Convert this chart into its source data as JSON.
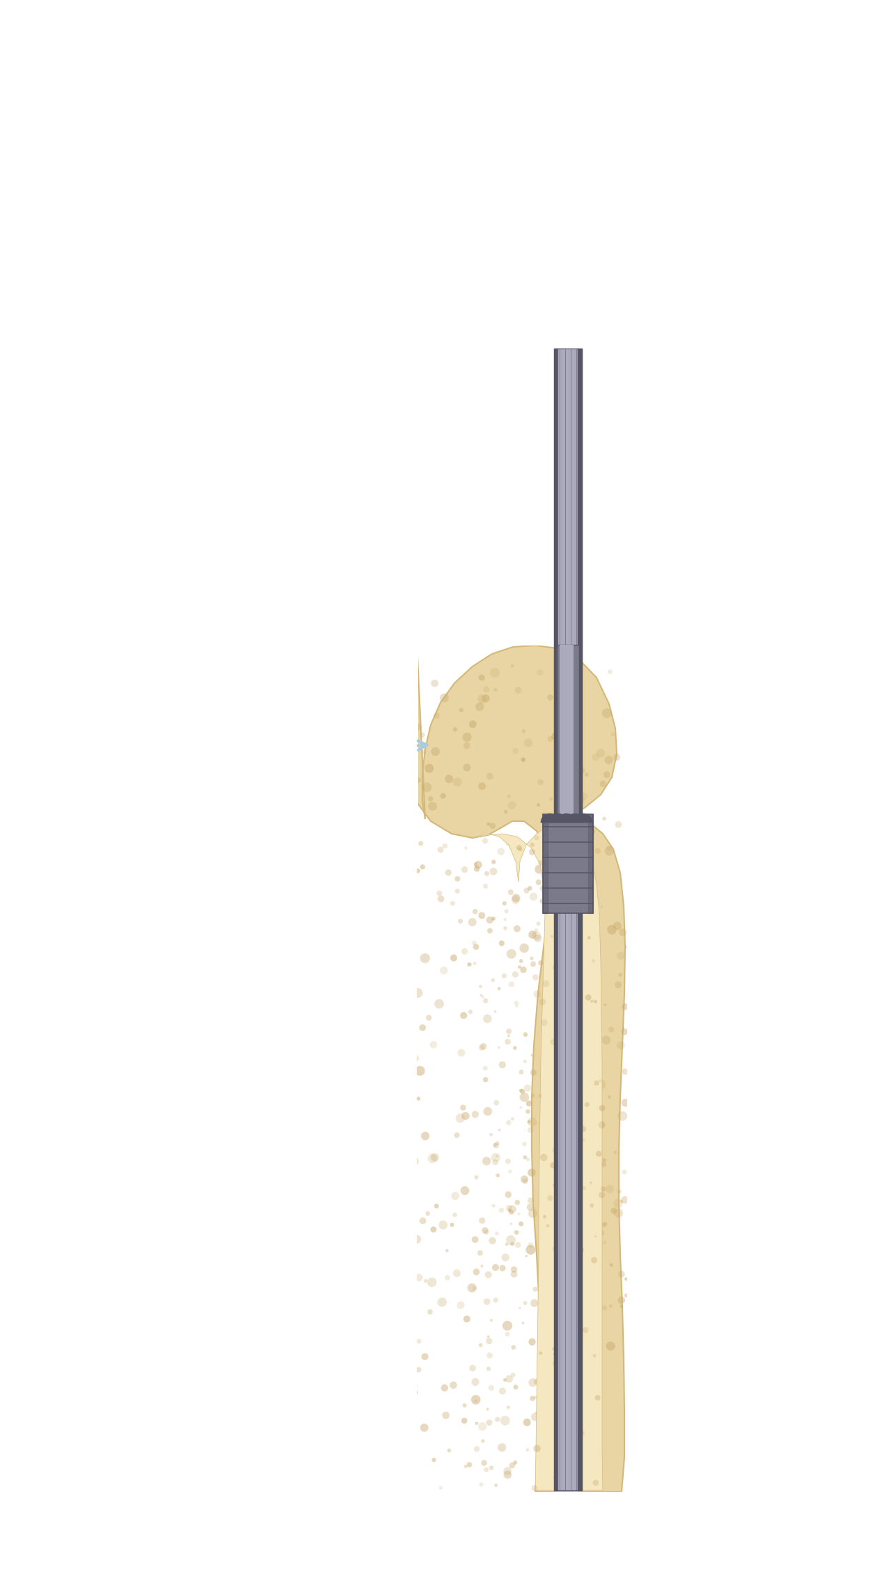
{
  "bg_color": "#ffffff",
  "bone_color": "#e8d5a3",
  "bone_texture_color": "#c9a96e",
  "bone_outline_color": "#d4b87a",
  "reamer_color": "#7a7a8a",
  "reamer_dark": "#555565",
  "reamer_light": "#aaaabc",
  "reamer_highlight": "#ccccdd",
  "glove_blue": "#aaccdd",
  "glove_light": "#cce0ee",
  "glove_dark": "#88aabb",
  "sleeve_blue": "#99bbcc",
  "arrow_color": "#aaccdd",
  "figure_width": 12.57,
  "figure_height": 22.78,
  "dpi": 100
}
